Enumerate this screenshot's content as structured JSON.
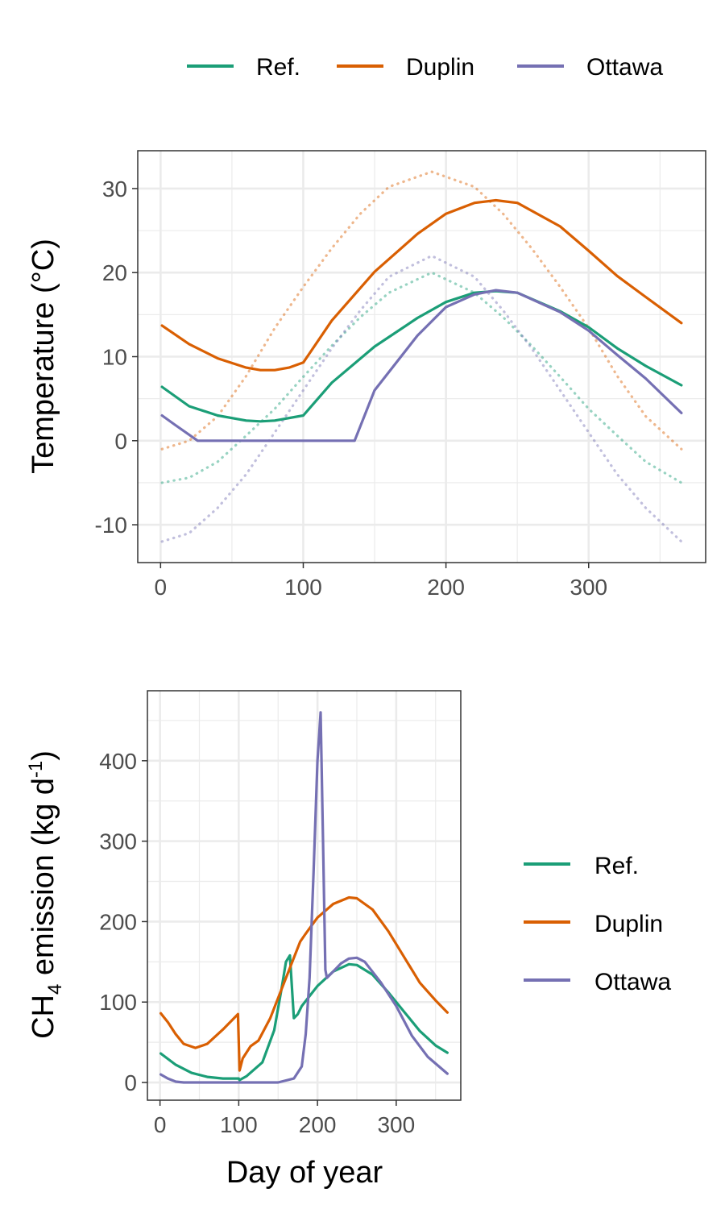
{
  "colors": {
    "ref": "#1b9e77",
    "duplin": "#d95f02",
    "ottawa": "#7570b3"
  },
  "legend_top": {
    "items": [
      "Ref.",
      "Duplin",
      "Ottawa"
    ],
    "position": "top"
  },
  "legend_right": {
    "items": [
      "Ref.",
      "Duplin",
      "Ottawa"
    ],
    "position": "right"
  },
  "chart_data": [
    {
      "type": "line",
      "ylabel": "Temperature (°C)",
      "xlabel": "",
      "xlim": [
        -16,
        382
      ],
      "ylim": [
        -14.5,
        34.5
      ],
      "x_ticks": [
        0,
        100,
        200,
        300
      ],
      "y_ticks": [
        -10,
        0,
        10,
        20,
        30
      ],
      "grid": true,
      "series": [
        {
          "name": "Ref.",
          "color": "#1b9e77",
          "style": "solid",
          "x": [
            1,
            20,
            40,
            60,
            70,
            80,
            100,
            120,
            150,
            180,
            200,
            220,
            235,
            250,
            280,
            300,
            320,
            340,
            365
          ],
          "y": [
            6.4,
            4.1,
            3.0,
            2.4,
            2.3,
            2.4,
            3.0,
            6.9,
            11.2,
            14.6,
            16.5,
            17.6,
            17.8,
            17.6,
            15.4,
            13.5,
            11.0,
            8.9,
            6.6
          ]
        },
        {
          "name": "Duplin",
          "color": "#d95f02",
          "style": "solid",
          "x": [
            1,
            20,
            40,
            60,
            70,
            80,
            90,
            100,
            120,
            150,
            180,
            200,
            220,
            235,
            250,
            280,
            300,
            320,
            340,
            365
          ],
          "y": [
            13.7,
            11.5,
            9.8,
            8.7,
            8.4,
            8.4,
            8.7,
            9.3,
            14.3,
            20.1,
            24.6,
            27.0,
            28.3,
            28.6,
            28.3,
            25.5,
            22.6,
            19.6,
            17.1,
            14.0
          ]
        },
        {
          "name": "Ottawa",
          "color": "#7570b3",
          "style": "solid",
          "x": [
            1,
            10,
            26,
            60,
            100,
            136,
            150,
            180,
            200,
            220,
            235,
            250,
            280,
            300,
            320,
            340,
            365
          ],
          "y": [
            3.0,
            1.9,
            0.0,
            0.0,
            0.0,
            0.0,
            6.0,
            12.5,
            15.9,
            17.4,
            17.9,
            17.6,
            15.3,
            13.1,
            10.2,
            7.4,
            3.3
          ]
        },
        {
          "name": "Ref.",
          "color": "#1b9e77",
          "style": "dotted",
          "x": [
            1,
            20,
            40,
            60,
            80,
            100,
            120,
            140,
            160,
            190,
            220,
            240,
            260,
            280,
            300,
            320,
            340,
            365
          ],
          "y": [
            -5.0,
            -4.4,
            -2.5,
            0.6,
            3.8,
            7.6,
            11.3,
            14.7,
            17.6,
            20.0,
            17.6,
            14.7,
            11.3,
            7.6,
            3.8,
            0.6,
            -2.5,
            -5.0
          ]
        },
        {
          "name": "Duplin",
          "color": "#d95f02",
          "style": "dotted",
          "x": [
            1,
            20,
            40,
            60,
            80,
            100,
            120,
            140,
            160,
            190,
            220,
            240,
            260,
            280,
            300,
            320,
            340,
            365
          ],
          "y": [
            -1.0,
            0.0,
            2.9,
            7.7,
            13.4,
            18.3,
            22.9,
            27.0,
            30.2,
            32.0,
            30.2,
            27.0,
            22.9,
            18.3,
            13.4,
            7.7,
            2.9,
            -1.0
          ]
        },
        {
          "name": "Ottawa",
          "color": "#7570b3",
          "style": "dotted",
          "x": [
            1,
            20,
            40,
            60,
            80,
            100,
            120,
            140,
            160,
            190,
            220,
            240,
            260,
            280,
            300,
            320,
            340,
            365
          ],
          "y": [
            -12.0,
            -11.0,
            -8.0,
            -4.0,
            1.0,
            6.0,
            11.0,
            15.5,
            19.5,
            22.0,
            19.5,
            15.5,
            11.0,
            6.0,
            1.0,
            -4.0,
            -8.0,
            -12.0
          ]
        }
      ]
    },
    {
      "type": "line",
      "ylabel_main": "CH",
      "ylabel_sub": "4",
      "ylabel_rest": " emission (kg d",
      "ylabel_sup": "-1",
      "ylabel_end": ")",
      "xlabel": "Day of year",
      "xlim": [
        -16,
        382
      ],
      "ylim": [
        -22,
        487
      ],
      "x_ticks": [
        0,
        100,
        200,
        300
      ],
      "y_ticks": [
        0,
        100,
        200,
        300,
        400
      ],
      "grid": true,
      "series": [
        {
          "name": "Ref.",
          "color": "#1b9e77",
          "style": "solid",
          "x": [
            1,
            20,
            40,
            60,
            80,
            100,
            101,
            110,
            130,
            145,
            155,
            160,
            165,
            170,
            175,
            180,
            200,
            220,
            240,
            250,
            270,
            290,
            310,
            330,
            350,
            365
          ],
          "y": [
            36,
            22,
            12,
            7,
            5,
            5,
            3,
            8,
            25,
            65,
            120,
            150,
            158,
            80,
            85,
            95,
            120,
            138,
            147,
            146,
            134,
            112,
            88,
            64,
            46,
            37
          ]
        },
        {
          "name": "Duplin",
          "color": "#d95f02",
          "style": "solid",
          "x": [
            1,
            10,
            20,
            30,
            45,
            60,
            80,
            90,
            99,
            101,
            105,
            115,
            125,
            140,
            160,
            178,
            185,
            200,
            220,
            240,
            250,
            270,
            290,
            310,
            330,
            350,
            365
          ],
          "y": [
            86,
            75,
            60,
            48,
            43,
            48,
            66,
            76,
            85,
            15,
            30,
            45,
            52,
            80,
            130,
            175,
            185,
            205,
            222,
            230,
            229,
            215,
            188,
            156,
            124,
            102,
            87
          ]
        },
        {
          "name": "Ottawa",
          "color": "#7570b3",
          "style": "solid",
          "x": [
            1,
            10,
            20,
            30,
            100,
            150,
            170,
            180,
            185,
            190,
            195,
            200,
            204,
            207,
            210,
            212,
            220,
            230,
            240,
            250,
            260,
            280,
            300,
            320,
            340,
            365
          ],
          "y": [
            10,
            5,
            1,
            0,
            0,
            0,
            5,
            20,
            60,
            130,
            260,
            400,
            460,
            300,
            140,
            130,
            138,
            148,
            154,
            155,
            150,
            125,
            95,
            58,
            32,
            11
          ]
        }
      ]
    }
  ]
}
